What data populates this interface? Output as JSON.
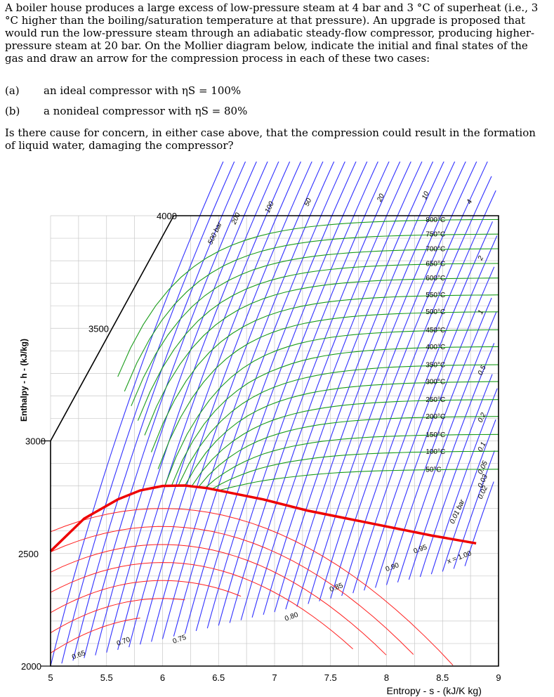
{
  "problem": {
    "intro": "A boiler house produces a large excess of low-pressure steam at 4 bar and 3 °C of superheat (i.e., 3 °C higher than the boiling/saturation temperature at that pressure). An upgrade is proposed that would run the low-pressure steam through an adiabatic steady-flow compressor, producing higher-pressure steam at 20 bar. On the Mollier diagram below, indicate the initial and final states of the gas and draw an arrow for the compression process in each of these two cases:",
    "case_a_label": "(a)",
    "case_a_text": "an ideal compressor with ηS = 100%",
    "case_b_label": "(b)",
    "case_b_text": "a nonideal compressor with ηS = 80%",
    "closing": "Is there cause for concern, in either case above, that the compression could result in the formation of liquid water, damaging the compressor?"
  },
  "chart_data": {
    "type": "line",
    "xlabel": "Entropy - s - (kJ/K kg)",
    "ylabel": "Enthalpy - h - (kJ/kg)",
    "xlim": [
      5,
      9
    ],
    "ylim": [
      2000,
      4000
    ],
    "x_ticks": [
      "5",
      "5.5",
      "6",
      "6.5",
      "7",
      "7.5",
      "8",
      "8.5",
      "9"
    ],
    "y_ticks": [
      "2000",
      "2500",
      "3000",
      "3500",
      "4000"
    ],
    "grid": true,
    "colors": {
      "isobar": "#3030ff",
      "isotherm": "#1a9c1a",
      "quality": "#ff2020",
      "saturation": "#ee0000"
    },
    "isobar_labels": [
      "500 bar",
      "200",
      "100",
      "50",
      "20",
      "10",
      "4",
      "2",
      "1",
      "0.5",
      "0.2",
      "0.1",
      "0.05",
      "0.03",
      "0.02",
      "0.01 bar"
    ],
    "isotherm_labels": [
      "800°C",
      "750°C",
      "700°C",
      "650°C",
      "600°C",
      "550°C",
      "500°C",
      "450°C",
      "400°C",
      "350°C",
      "300°C",
      "250°C",
      "200°C",
      "150°C",
      "100°C",
      "50°C"
    ],
    "quality_labels": [
      "x = 1.00",
      "0.95",
      "0.90",
      "0.85",
      "0.80",
      "0.75",
      "0.70",
      "0.65"
    ],
    "saturation_line": {
      "s": [
        5.0,
        5.3,
        5.6,
        5.8,
        6.0,
        6.2,
        6.4,
        6.6,
        6.9,
        7.3,
        7.6,
        8.0,
        8.4,
        8.8
      ],
      "h": [
        2510,
        2655,
        2740,
        2780,
        2800,
        2802,
        2790,
        2770,
        2740,
        2690,
        2660,
        2620,
        2580,
        2545
      ]
    }
  }
}
